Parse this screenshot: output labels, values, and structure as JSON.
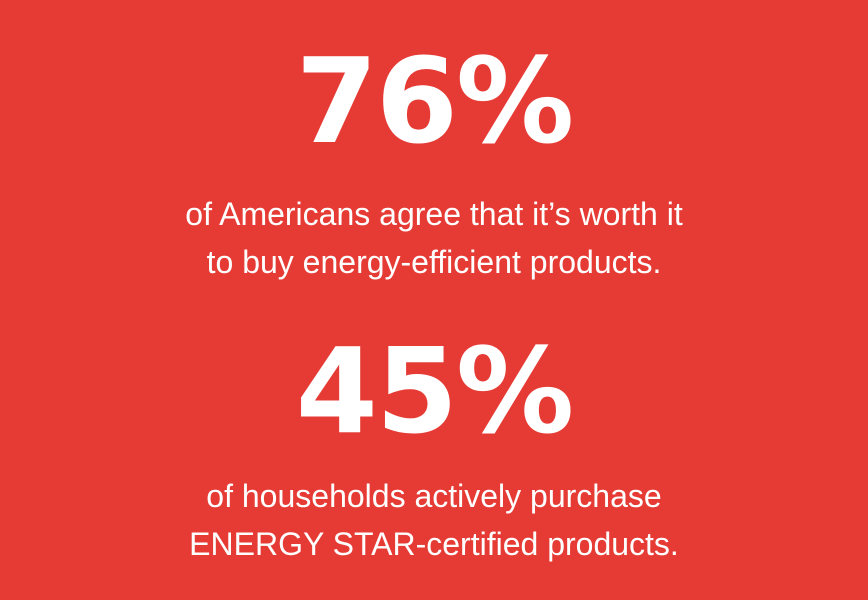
{
  "stats": [
    {
      "figure": "76%",
      "lines": [
        "of Americans agree that it’s worth it",
        "to buy energy-efficient products."
      ]
    },
    {
      "figure": "45%",
      "lines": [
        "of households actively purchase",
        "ENERGY STAR-certified products."
      ]
    }
  ]
}
